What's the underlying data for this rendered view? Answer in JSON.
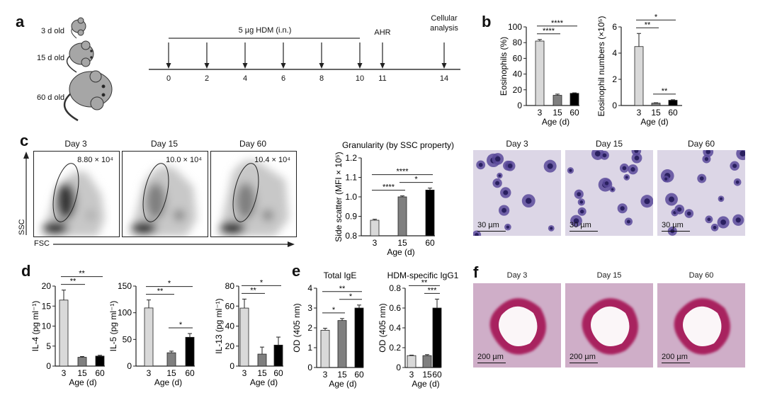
{
  "panel_letters": {
    "a": "a",
    "b": "b",
    "c": "c",
    "d": "d",
    "e": "e",
    "f": "f"
  },
  "panel_a": {
    "mice": [
      {
        "label": "3 d old"
      },
      {
        "label": "15 d old"
      },
      {
        "label": "60 d old"
      }
    ],
    "treatment_label": "5 µg HDM (i.n.)",
    "ahr_label": "AHR",
    "analysis_label_line1": "Cellular",
    "analysis_label_line2": "analysis",
    "timeline_days": [
      "0",
      "2",
      "4",
      "6",
      "8",
      "10",
      "11",
      "14"
    ]
  },
  "panel_c_flow": {
    "y_axis_label": "SSC",
    "x_axis_label": "FSC",
    "plots": [
      {
        "title": "Day 3",
        "gate_value": "8.80 × 10⁴"
      },
      {
        "title": "Day 15",
        "gate_value": "10.0 × 10⁴"
      },
      {
        "title": "Day 60",
        "gate_value": "10.4 × 10⁴"
      }
    ]
  },
  "panel_c_micrographs": [
    {
      "title": "Day 3",
      "scale": "30 µm"
    },
    {
      "title": "Day 15",
      "scale": "30 µm"
    },
    {
      "title": "Day 60",
      "scale": "30 µm"
    }
  ],
  "panel_f_histology": [
    {
      "title": "Day 3",
      "scale": "200 µm"
    },
    {
      "title": "Day 15",
      "scale": "200 µm"
    },
    {
      "title": "Day 60",
      "scale": "200 µm"
    }
  ],
  "colors": {
    "age_3": "#d9d9d9",
    "age_15": "#7f7f7f",
    "age_60": "#000000",
    "stain": "#c0306a",
    "cells": "#4a3a8a"
  },
  "chart_data": [
    {
      "id": "eos_pct",
      "type": "bar",
      "title": "",
      "xlabel": "Age (d)",
      "ylabel": "Eosinophils (%)",
      "categories": [
        "3",
        "15",
        "60"
      ],
      "values": [
        82,
        13,
        15.5
      ],
      "errors": [
        2,
        1.5,
        0.6
      ],
      "ylim": [
        0,
        100
      ],
      "yticks": [
        "0",
        "20",
        "40",
        "60",
        "80",
        "100"
      ],
      "significance": [
        [
          0,
          1,
          "****"
        ],
        [
          0,
          2,
          "****"
        ]
      ]
    },
    {
      "id": "eos_num",
      "type": "bar",
      "title": "",
      "xlabel": "Age (d)",
      "ylabel": "Eosinophil numbers (×10⁵)",
      "categories": [
        "3",
        "15",
        "60"
      ],
      "values": [
        4.5,
        0.18,
        0.4
      ],
      "errors": [
        1.0,
        0.03,
        0.04
      ],
      "ylim": [
        0,
        6
      ],
      "yticks": [
        "0",
        "2",
        "4",
        "6"
      ],
      "significance": [
        [
          1,
          2,
          "**"
        ],
        [
          0,
          1,
          "**"
        ],
        [
          0,
          2,
          "*"
        ]
      ]
    },
    {
      "id": "ssc",
      "type": "bar",
      "title": "Granularity (by SSC property)",
      "xlabel": "Age (d)",
      "ylabel": "Side scatter (MFI × 10⁵)",
      "categories": [
        "3",
        "15",
        "60"
      ],
      "values": [
        0.88,
        1.0,
        1.035
      ],
      "errors": [
        0.005,
        0.005,
        0.01
      ],
      "ylim": [
        0.8,
        1.2
      ],
      "yticks": [
        "0.8",
        "0.9",
        "1.0",
        "1.1",
        "1.2"
      ],
      "significance": [
        [
          0,
          1,
          "****"
        ],
        [
          1,
          2,
          "*"
        ],
        [
          0,
          2,
          "****"
        ]
      ]
    },
    {
      "id": "il4",
      "type": "bar",
      "title": "",
      "xlabel": "Age (d)",
      "ylabel": "IL-4 (pg ml⁻¹)",
      "categories": [
        "3",
        "15",
        "60"
      ],
      "values": [
        16.5,
        2.2,
        2.5
      ],
      "errors": [
        2.5,
        0.2,
        0.2
      ],
      "ylim": [
        0,
        20
      ],
      "yticks": [
        "0",
        "5",
        "10",
        "15",
        "20"
      ],
      "significance": [
        [
          0,
          1,
          "**"
        ],
        [
          0,
          2,
          "**"
        ]
      ]
    },
    {
      "id": "il5",
      "type": "bar",
      "title": "",
      "xlabel": "Age (d)",
      "ylabel": "IL-5 (pg ml⁻¹)",
      "categories": [
        "3",
        "15",
        "60"
      ],
      "values": [
        109,
        25,
        54
      ],
      "errors": [
        15,
        3,
        7
      ],
      "ylim": [
        0,
        150
      ],
      "yticks": [
        "0",
        "50",
        "100",
        "150"
      ],
      "significance": [
        [
          1,
          2,
          "*"
        ],
        [
          0,
          1,
          "**"
        ],
        [
          0,
          2,
          "*"
        ]
      ]
    },
    {
      "id": "il13",
      "type": "bar",
      "title": "",
      "xlabel": "Age (d)",
      "ylabel": "IL-13 (pg ml⁻¹)",
      "categories": [
        "3",
        "15",
        "60"
      ],
      "values": [
        58,
        12,
        21
      ],
      "errors": [
        9,
        7,
        8
      ],
      "ylim": [
        0,
        80
      ],
      "yticks": [
        "0",
        "20",
        "40",
        "60",
        "80"
      ],
      "significance": [
        [
          0,
          1,
          "**"
        ],
        [
          0,
          2,
          "*"
        ]
      ]
    },
    {
      "id": "ige",
      "type": "bar",
      "title": "Total IgE",
      "xlabel": "Age (d)",
      "ylabel": "OD (405 nm)",
      "categories": [
        "3",
        "15",
        "60"
      ],
      "values": [
        1.88,
        2.37,
        3.0
      ],
      "errors": [
        0.1,
        0.1,
        0.15
      ],
      "ylim": [
        0,
        4
      ],
      "yticks": [
        "0",
        "1",
        "2",
        "3",
        "4"
      ],
      "significance": [
        [
          0,
          1,
          "*"
        ],
        [
          1,
          2,
          "*"
        ],
        [
          0,
          2,
          "**"
        ]
      ]
    },
    {
      "id": "igg1",
      "type": "bar",
      "title": "HDM-specific IgG1",
      "xlabel": "Age (d)",
      "ylabel": "OD (405 nm)",
      "categories": [
        "3",
        "15",
        "60"
      ],
      "values": [
        0.12,
        0.12,
        0.6
      ],
      "errors": [
        0.005,
        0.01,
        0.09
      ],
      "ylim": [
        0,
        0.8
      ],
      "yticks": [
        "0",
        "0.2",
        "0.4",
        "0.6",
        "0.8"
      ],
      "significance": [
        [
          1,
          2,
          "***"
        ],
        [
          0,
          2,
          "**"
        ]
      ]
    }
  ]
}
